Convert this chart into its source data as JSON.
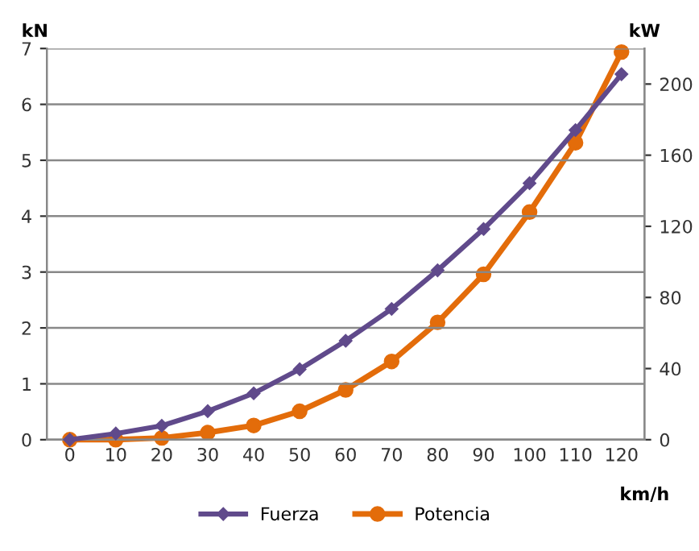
{
  "chart_data": {
    "type": "line",
    "categories": [
      "0",
      "10",
      "20",
      "30",
      "40",
      "50",
      "60",
      "70",
      "80",
      "90",
      "100",
      "110",
      "120"
    ],
    "xlabel": "km/h",
    "ylabel": "kN",
    "y2label": "kW",
    "series": [
      {
        "name": "Fuerza",
        "color": "#604a8b",
        "marker": "diamond",
        "values": [
          0,
          0.11,
          0.25,
          0.51,
          0.83,
          1.26,
          1.77,
          2.34,
          3.03,
          3.77,
          4.59,
          5.54,
          6.54
        ]
      },
      {
        "name": "Potencia",
        "color": "#e36c0a",
        "marker": "circle",
        "axis": "y2",
        "values": [
          0,
          0,
          1,
          4,
          8,
          16,
          28,
          44,
          66,
          93,
          128,
          167,
          218
        ]
      }
    ],
    "ylim": [
      0,
      7
    ],
    "yticks": [
      0,
      1,
      2,
      3,
      4,
      5,
      6,
      7
    ],
    "y2lim": [
      0,
      220
    ],
    "y2ticks": [
      0,
      40,
      80,
      120,
      160,
      200
    ],
    "grid": "y",
    "legend": "bottom"
  }
}
